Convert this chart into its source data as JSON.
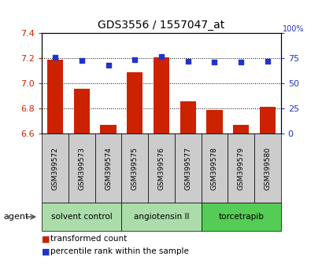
{
  "title": "GDS3556 / 1557047_at",
  "samples": [
    "GSM399572",
    "GSM399573",
    "GSM399574",
    "GSM399575",
    "GSM399576",
    "GSM399577",
    "GSM399578",
    "GSM399579",
    "GSM399580"
  ],
  "transformed_counts": [
    7.19,
    6.96,
    6.67,
    7.09,
    7.21,
    6.86,
    6.79,
    6.67,
    6.81
  ],
  "percentile_ranks": [
    76,
    73,
    68,
    74,
    77,
    72,
    71,
    71,
    72
  ],
  "ylim_left": [
    6.6,
    7.4
  ],
  "ylim_right": [
    0,
    100
  ],
  "yticks_left": [
    6.6,
    6.8,
    7.0,
    7.2,
    7.4
  ],
  "yticks_right": [
    0,
    25,
    50,
    75,
    100
  ],
  "bar_color": "#cc2200",
  "dot_color": "#2233cc",
  "bar_bottom": 6.6,
  "legend_red_label": "transformed count",
  "legend_blue_label": "percentile rank within the sample",
  "agent_label": "agent",
  "sample_bg_color": "#cccccc",
  "group_infos": [
    {
      "label": "solvent control",
      "indices": [
        0,
        1,
        2
      ],
      "color": "#aaddaa"
    },
    {
      "label": "angiotensin II",
      "indices": [
        3,
        4,
        5
      ],
      "color": "#aaddaa"
    },
    {
      "label": "torcetrapib",
      "indices": [
        6,
        7,
        8
      ],
      "color": "#55cc55"
    }
  ],
  "title_fontsize": 10,
  "tick_fontsize": 8,
  "label_fontsize": 8
}
